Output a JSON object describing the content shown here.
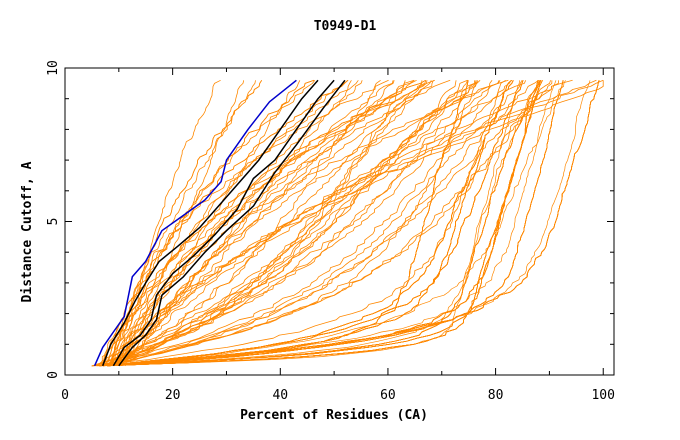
{
  "chart_data": {
    "type": "line",
    "title": "T0949-D1",
    "xlabel": "Percent of Residues (CA)",
    "ylabel": "Distance Cutoff, A",
    "xlim": [
      0,
      102
    ],
    "ylim": [
      0,
      10
    ],
    "xticks": [
      0,
      20,
      40,
      60,
      80,
      100
    ],
    "yticks": [
      0,
      5,
      10
    ],
    "colors": {
      "background": "#888888",
      "highlight_blue": "#0000cc",
      "highlight_black": "#000000"
    },
    "series": [
      {
        "color": "blue",
        "points": [
          [
            5.5,
            0.3
          ],
          [
            7,
            0.9
          ],
          [
            9,
            1.4
          ],
          [
            11,
            1.9
          ],
          [
            12.5,
            3.2
          ],
          [
            15,
            3.7
          ],
          [
            18,
            4.7
          ],
          [
            22,
            5.2
          ],
          [
            26,
            5.7
          ],
          [
            29,
            6.3
          ],
          [
            30,
            7.0
          ],
          [
            34,
            8.0
          ],
          [
            38,
            8.9
          ],
          [
            43,
            9.6
          ]
        ]
      },
      {
        "color": "black",
        "points": [
          [
            7,
            0.3
          ],
          [
            8.5,
            1.0
          ],
          [
            11,
            1.7
          ],
          [
            13,
            2.4
          ],
          [
            15,
            3.0
          ],
          [
            17.5,
            3.7
          ],
          [
            21,
            4.2
          ],
          [
            25,
            4.8
          ],
          [
            29,
            5.6
          ],
          [
            32,
            6.2
          ],
          [
            36,
            7.0
          ],
          [
            40,
            8.0
          ],
          [
            44,
            9.0
          ],
          [
            47,
            9.6
          ]
        ]
      },
      {
        "color": "black",
        "points": [
          [
            9,
            0.3
          ],
          [
            11,
            0.9
          ],
          [
            14,
            1.3
          ],
          [
            16,
            1.8
          ],
          [
            17,
            2.6
          ],
          [
            20,
            3.3
          ],
          [
            24,
            3.9
          ],
          [
            28,
            4.6
          ],
          [
            32,
            5.4
          ],
          [
            35,
            6.4
          ],
          [
            39,
            7.0
          ],
          [
            43,
            8.0
          ],
          [
            47,
            9.0
          ],
          [
            50,
            9.6
          ]
        ]
      },
      {
        "color": "black",
        "points": [
          [
            10,
            0.3
          ],
          [
            12.5,
            0.9
          ],
          [
            15,
            1.3
          ],
          [
            17,
            1.8
          ],
          [
            18,
            2.6
          ],
          [
            22,
            3.2
          ],
          [
            26,
            4.0
          ],
          [
            30,
            4.7
          ],
          [
            35,
            5.5
          ],
          [
            39,
            6.6
          ],
          [
            43,
            7.5
          ],
          [
            48,
            8.7
          ],
          [
            52,
            9.6
          ]
        ]
      }
    ]
  }
}
